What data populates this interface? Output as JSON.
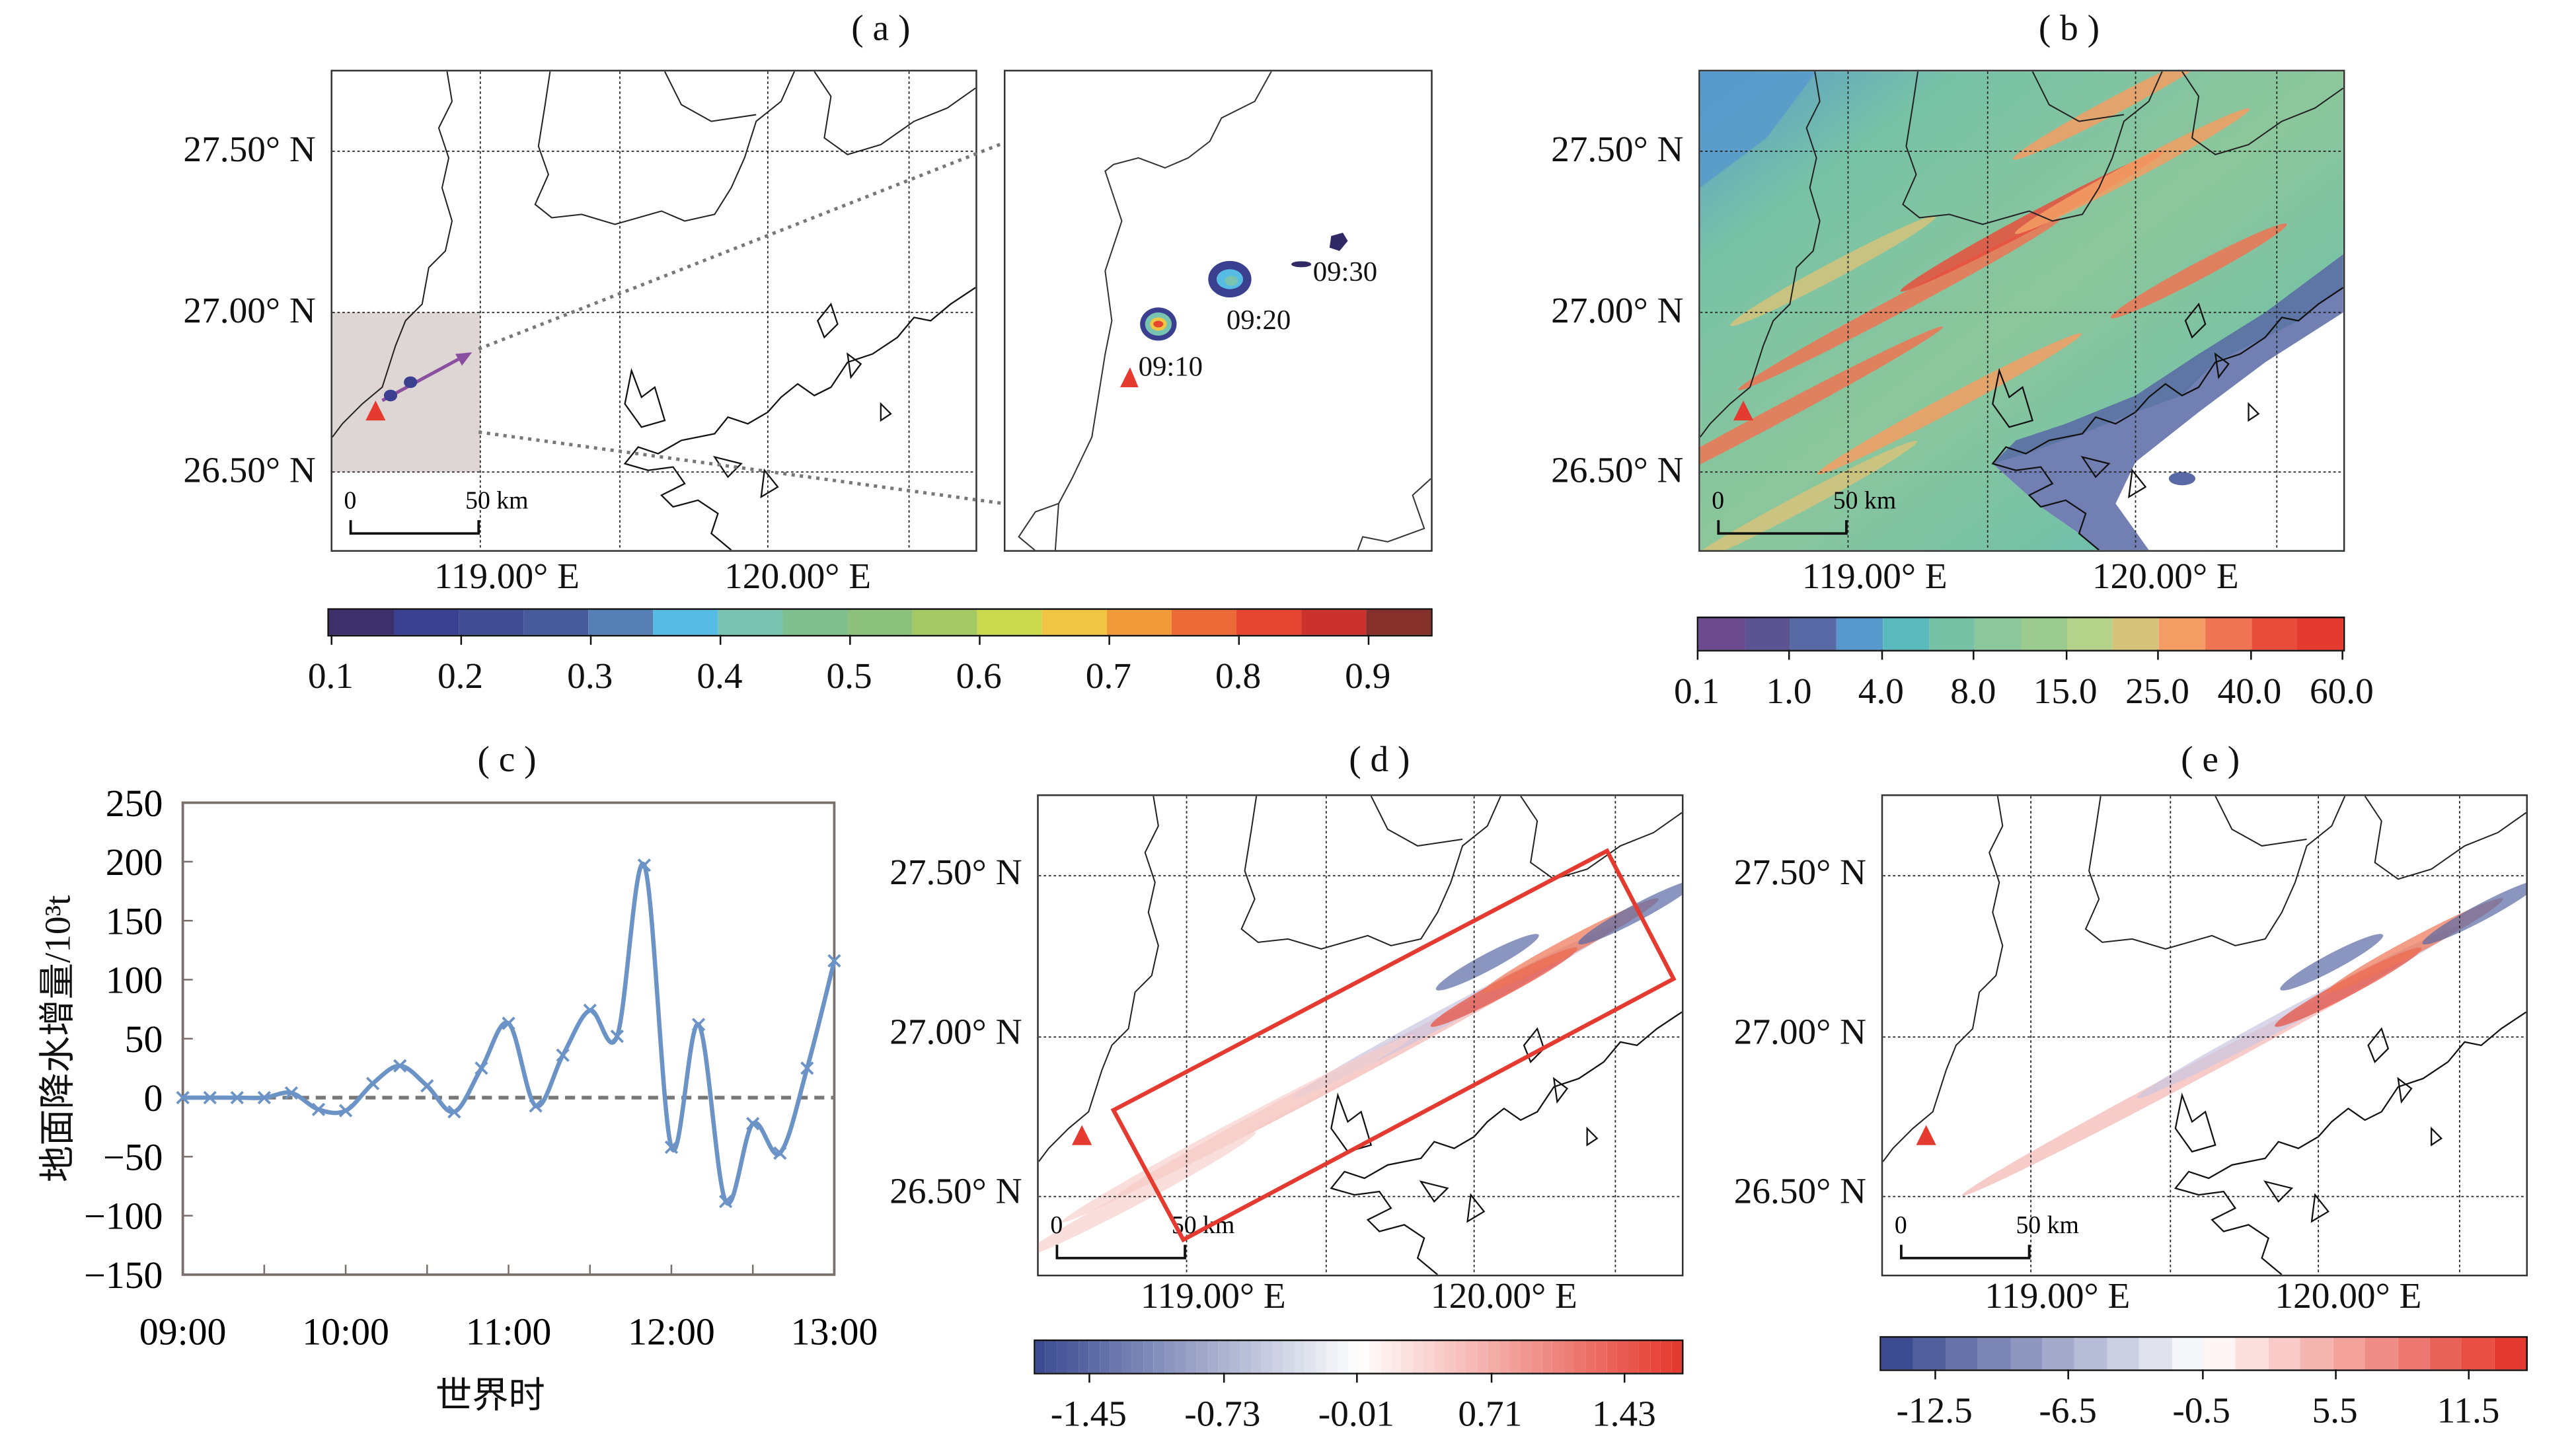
{
  "panels": {
    "a": {
      "title": "( a )",
      "lat_labels": [
        "27.50° N",
        "27.00° N",
        "26.50° N"
      ],
      "lon_labels": [
        "119.00° E",
        "120.00° E"
      ],
      "scale_bar": {
        "start": "0",
        "end": "50 km"
      },
      "time_labels": [
        "09:10",
        "09:20",
        "09:30"
      ],
      "colorbar": {
        "ticks": [
          "0.1",
          "0.2",
          "0.3",
          "0.4",
          "0.5",
          "0.6",
          "0.7",
          "0.8",
          "0.9"
        ],
        "colors": [
          "#3d2f6b",
          "#3b3f8f",
          "#404c93",
          "#475a99",
          "#5680b5",
          "#57bce3",
          "#78c4b0",
          "#7fbf8f",
          "#8cc17b",
          "#a4c863",
          "#cbd94f",
          "#f0c543",
          "#f19a3a",
          "#eb6a37",
          "#e64532",
          "#cb322d",
          "#85302a"
        ]
      }
    },
    "b": {
      "title": "( b )",
      "lat_labels": [
        "27.50° N",
        "27.00° N",
        "26.50° N"
      ],
      "lon_labels": [
        "119.00° E",
        "120.00° E"
      ],
      "scale_bar": {
        "start": "0",
        "end": "50 km"
      },
      "colorbar": {
        "ticks": [
          "0.1",
          "1.0",
          "4.0",
          "8.0",
          "15.0",
          "25.0",
          "40.0",
          "60.0"
        ],
        "colors": [
          "#6b4a8e",
          "#5b5392",
          "#5869a5",
          "#5899cd",
          "#5bbabd",
          "#77c2a7",
          "#8cc69b",
          "#9bcb8f",
          "#b5d28a",
          "#d6c37b",
          "#f39d64",
          "#ee7452",
          "#e84d3c",
          "#e43a30"
        ]
      }
    },
    "c": {
      "title": "( c )"
    },
    "d": {
      "title": "( d )",
      "lat_labels": [
        "27.50° N",
        "27.00° N",
        "26.50° N"
      ],
      "lon_labels": [
        "119.00° E",
        "120.00° E"
      ],
      "scale_bar": {
        "start": "0",
        "end": "50 km"
      },
      "colorbar": {
        "ticks": [
          "-1.45",
          "-0.73",
          "-0.01",
          "0.71",
          "1.43"
        ],
        "low": "#3d4c92",
        "mid": "#ffffff",
        "high": "#e53a2f"
      }
    },
    "e": {
      "title": "( e )",
      "lat_labels": [
        "27.50° N",
        "27.00° N",
        "26.50° N"
      ],
      "lon_labels": [
        "119.00° E",
        "120.00° E"
      ],
      "scale_bar": {
        "start": "0",
        "end": "50 km"
      },
      "colorbar": {
        "ticks": [
          "-12.5",
          "-6.5",
          "-0.5",
          "5.5",
          "11.5"
        ],
        "low": "#3d4c92",
        "mid": "#ffffff",
        "high": "#e53a2f"
      }
    }
  },
  "chart_data": {
    "type": "line",
    "title": "( c )",
    "xlabel": "世界时",
    "ylabel": "地面降水增量/10³t",
    "x": [
      "09:00",
      "09:10",
      "09:20",
      "09:30",
      "09:40",
      "09:50",
      "10:00",
      "10:10",
      "10:20",
      "10:30",
      "10:40",
      "10:50",
      "11:00",
      "11:10",
      "11:20",
      "11:30",
      "11:40",
      "11:50",
      "12:00",
      "12:10",
      "12:20",
      "12:30",
      "12:40",
      "12:50",
      "13:00"
    ],
    "values": [
      0,
      0,
      0,
      0,
      4,
      -10,
      -11,
      12,
      27,
      10,
      -12,
      25,
      63,
      -7,
      36,
      74,
      52,
      197,
      -42,
      62,
      -88,
      -22,
      -47,
      25,
      116
    ],
    "xticks": [
      "09:00",
      "10:00",
      "11:00",
      "12:00",
      "13:00"
    ],
    "yticks": [
      "250",
      "200",
      "150",
      "100",
      "50",
      "0",
      "-50",
      "-100",
      "-150"
    ],
    "ylim": [
      -150,
      250
    ],
    "reference_line": 0,
    "series_color": "#6b93c6",
    "reference_color": "#777777"
  }
}
